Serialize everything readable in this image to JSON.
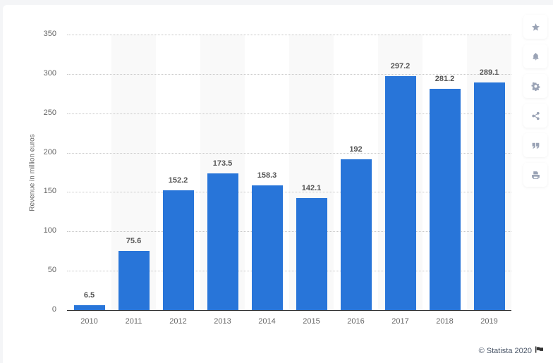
{
  "chart_data": {
    "type": "bar",
    "title": "",
    "xlabel": "",
    "ylabel": "Revenue in million euros",
    "ylim": [
      0,
      350
    ],
    "yticks": [
      0,
      50,
      100,
      150,
      200,
      250,
      300,
      350
    ],
    "grid": true,
    "legend": null,
    "categories": [
      "2010",
      "2011",
      "2012",
      "2013",
      "2014",
      "2015",
      "2016",
      "2017",
      "2018",
      "2019"
    ],
    "values": [
      6.5,
      75.6,
      152.2,
      173.5,
      158.3,
      142.1,
      192,
      297.2,
      281.2,
      289.1
    ],
    "value_labels": [
      "6.5",
      "75.6",
      "152.2",
      "173.5",
      "158.3",
      "142.1",
      "192",
      "297.2",
      "281.2",
      "289.1"
    ],
    "bar_color": "#2875d9"
  },
  "sidebar": {
    "buttons": [
      {
        "name": "star-icon",
        "label": "Favorite"
      },
      {
        "name": "bell-icon",
        "label": "Notifications"
      },
      {
        "name": "gear-icon",
        "label": "Settings"
      },
      {
        "name": "share-icon",
        "label": "Share"
      },
      {
        "name": "quote-icon",
        "label": "Cite"
      },
      {
        "name": "print-icon",
        "label": "Print"
      }
    ]
  },
  "footer": {
    "copyright": "© Statista 2020"
  }
}
